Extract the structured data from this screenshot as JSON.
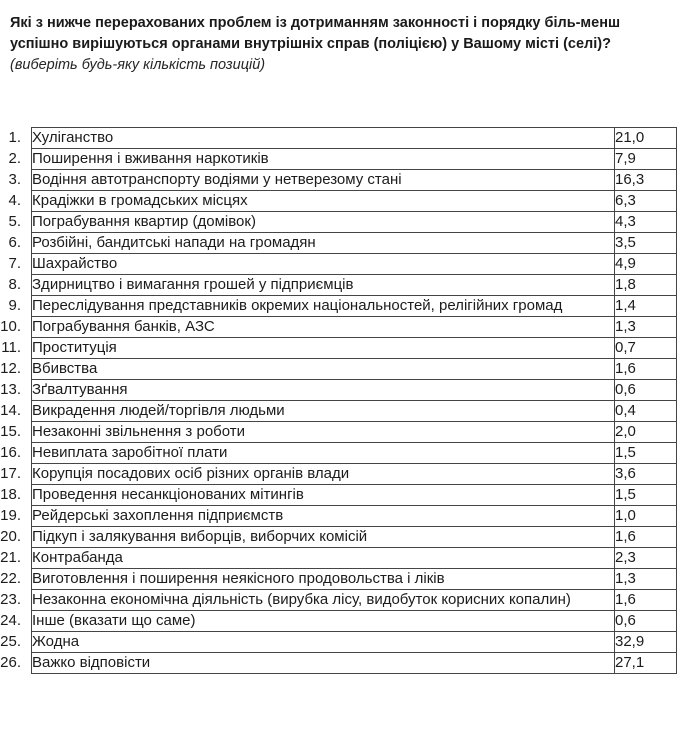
{
  "question": {
    "bold_text": "Які з нижче перерахованих проблем із дотриманням законності і порядку біль-менш успішно вирішуються органами внутрішніх справ (поліцією) у Вашому місті (селі)? ",
    "italic_note": "(виберіть будь-яку кількість позицій)"
  },
  "table": {
    "rows": [
      {
        "num": "1.",
        "label": "Хуліганство",
        "value": "21,0"
      },
      {
        "num": "2.",
        "label": "Поширення і вживання наркотиків",
        "value": "7,9"
      },
      {
        "num": "3.",
        "label": "Водіння автотранспорту водіями у нетверезому стані",
        "value": "16,3"
      },
      {
        "num": "4.",
        "label": "Крадіжки в громадських місцях",
        "value": "6,3"
      },
      {
        "num": "5.",
        "label": "Пограбування квартир (домівок)",
        "value": "4,3"
      },
      {
        "num": "6.",
        "label": "Розбійні, бандитські напади на громадян",
        "value": "3,5"
      },
      {
        "num": "7.",
        "label": "Шахрайство",
        "value": "4,9"
      },
      {
        "num": "8.",
        "label": "Здирництво і вимагання грошей у підприємців",
        "value": "1,8"
      },
      {
        "num": "9.",
        "label": "Переслідування представників окремих національностей, релігійних громад",
        "value": "1,4"
      },
      {
        "num": "10.",
        "label": "Пограбування банків, АЗС",
        "value": "1,3"
      },
      {
        "num": "11.",
        "label": "Проституція",
        "value": "0,7"
      },
      {
        "num": "12.",
        "label": "Вбивства",
        "value": "1,6"
      },
      {
        "num": "13.",
        "label": "Зґвалтування",
        "value": "0,6"
      },
      {
        "num": "14.",
        "label": "Викрадення людей/торгівля людьми",
        "value": "0,4"
      },
      {
        "num": "15.",
        "label": "Незаконні звільнення з роботи",
        "value": "2,0"
      },
      {
        "num": "16.",
        "label": "Невиплата заробітної плати",
        "value": "1,5"
      },
      {
        "num": "17.",
        "label": "Корупція посадових осіб різних органів влади",
        "value": "3,6"
      },
      {
        "num": "18.",
        "label": "Проведення несанкціонованих мітингів",
        "value": "1,5"
      },
      {
        "num": "19.",
        "label": "Рейдерські захоплення підприємств",
        "value": "1,0"
      },
      {
        "num": "20.",
        "label": "Підкуп і залякування виборців, виборчих комісій",
        "value": "1,6"
      },
      {
        "num": "21.",
        "label": "Контрабанда",
        "value": "2,3"
      },
      {
        "num": "22.",
        "label": "Виготовлення і поширення неякісного продовольства і ліків",
        "value": "1,3"
      },
      {
        "num": "23.",
        "label": "Незаконна економічна діяльність (вирубка лісу, видобуток корисних копалин)",
        "value": "1,6"
      },
      {
        "num": "24.",
        "label": "Інше (вказати що саме)",
        "value": "0,6"
      },
      {
        "num": "25.",
        "label": "Жодна",
        "value": "32,9"
      },
      {
        "num": "26.",
        "label": "Важко відповісти",
        "value": "27,1"
      }
    ]
  }
}
